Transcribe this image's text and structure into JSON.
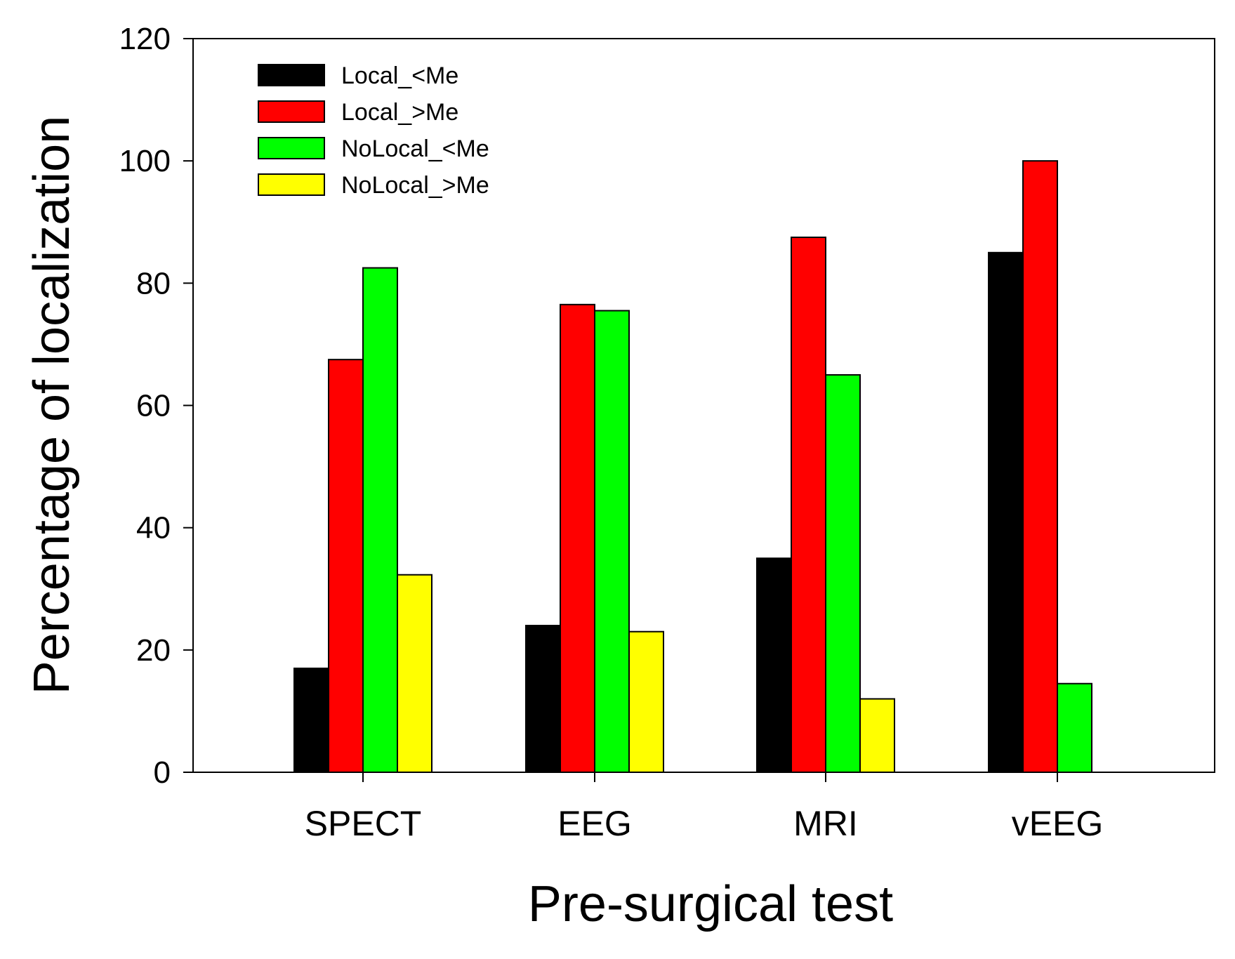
{
  "chart_data": {
    "type": "bar",
    "title": "",
    "xlabel": "Pre-surgical test",
    "ylabel": "Percentage of localization",
    "categories": [
      "SPECT",
      "EEG",
      "MRI",
      "vEEG"
    ],
    "series": [
      {
        "name": "Local_<Me",
        "color": "#000000",
        "values": [
          17,
          24,
          35,
          85
        ]
      },
      {
        "name": "Local_>Me",
        "color": "#ff0000",
        "values": [
          67.5,
          76.5,
          87.5,
          100
        ]
      },
      {
        "name": "NoLocal_<Me",
        "color": "#00ff00",
        "values": [
          82.5,
          75.5,
          65,
          14.5
        ]
      },
      {
        "name": "NoLocal_>Me",
        "color": "#ffff00",
        "values": [
          32.3,
          23,
          12,
          0
        ]
      }
    ],
    "ylim": [
      0,
      120
    ],
    "yticks": [
      0,
      20,
      40,
      60,
      80,
      100,
      120
    ],
    "grid": false,
    "legend_position": "top-left"
  }
}
